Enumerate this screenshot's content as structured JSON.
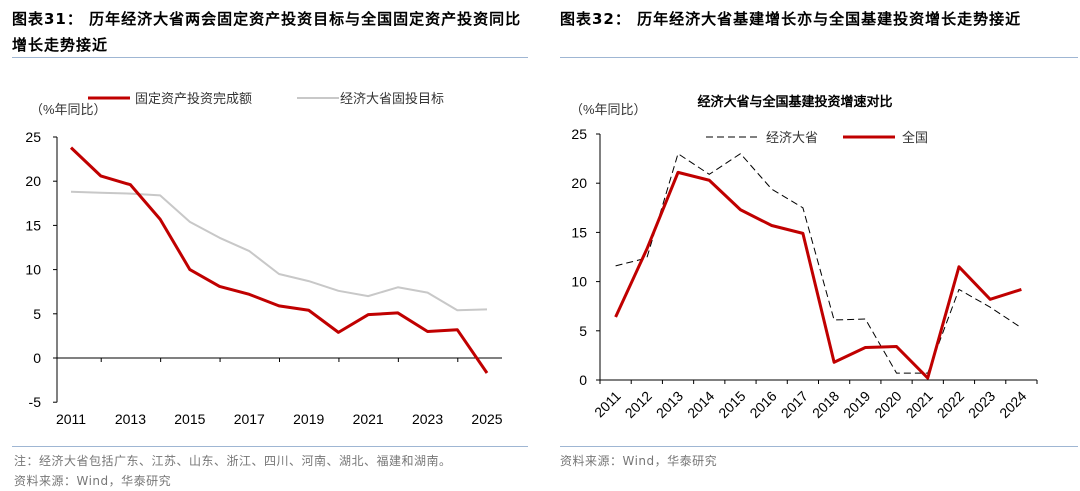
{
  "left": {
    "title": "图表31： 历年经济大省两会固定资产投资目标与全国固定资产投资同比增长走势接近",
    "note": "注：经济大省包括广东、江苏、山东、浙江、四川、河南、湖北、福建和湖南。",
    "source": "资料来源：Wind，华泰研究"
  },
  "right": {
    "title": "图表32： 历年经济大省基建增长亦与全国基建投资增长走势接近",
    "source": "资料来源：Wind，华泰研究"
  },
  "chart_data": [
    {
      "type": "line",
      "ylabel": "（%年同比）",
      "ylim": [
        -5,
        25
      ],
      "yticks": [
        "25",
        "20",
        "15",
        "10",
        "5",
        "0",
        "-5"
      ],
      "x": [
        2011,
        2012,
        2013,
        2014,
        2015,
        2016,
        2017,
        2018,
        2019,
        2020,
        2021,
        2022,
        2023,
        2024,
        2025
      ],
      "xtick_labels": [
        "2011",
        "2013",
        "2015",
        "2017",
        "2019",
        "2021",
        "2023",
        "2025"
      ],
      "legend": "top",
      "series": [
        {
          "name": "固定资产投资完成额",
          "color": "#c00000",
          "style": "solid",
          "values": [
            23.8,
            20.6,
            19.6,
            15.7,
            10.0,
            8.1,
            7.2,
            5.9,
            5.4,
            2.9,
            4.9,
            5.1,
            3.0,
            3.2,
            -1.7
          ]
        },
        {
          "name": "经济大省固投目标",
          "color": "#c8c8c8",
          "style": "solid",
          "values": [
            18.8,
            18.7,
            18.6,
            18.4,
            15.4,
            13.6,
            12.1,
            9.5,
            8.7,
            7.6,
            7.0,
            8.0,
            7.4,
            5.4,
            5.5
          ]
        }
      ]
    },
    {
      "type": "line",
      "title": "经济大省与全国基建投资增速对比",
      "ylabel": "（%年同比）",
      "ylim": [
        0,
        25
      ],
      "yticks": [
        "25",
        "20",
        "15",
        "10",
        "5",
        "0"
      ],
      "categories": [
        "2011",
        "2012",
        "2013",
        "2014",
        "2015",
        "2016",
        "2017",
        "2018",
        "2019",
        "2020",
        "2021",
        "2022",
        "2023",
        "2024"
      ],
      "legend": "top",
      "series": [
        {
          "name": "经济大省",
          "color": "#000000",
          "style": "dashed",
          "values": [
            11.6,
            12.4,
            23.0,
            20.9,
            23.0,
            19.4,
            17.5,
            6.1,
            6.2,
            0.7,
            0.7,
            9.2,
            7.4,
            5.3
          ]
        },
        {
          "name": "全国",
          "color": "#c00000",
          "style": "solid",
          "values": [
            6.4,
            13.3,
            21.1,
            20.3,
            17.3,
            15.7,
            14.9,
            1.8,
            3.3,
            3.4,
            0.2,
            11.5,
            8.2,
            9.2
          ]
        }
      ]
    }
  ]
}
